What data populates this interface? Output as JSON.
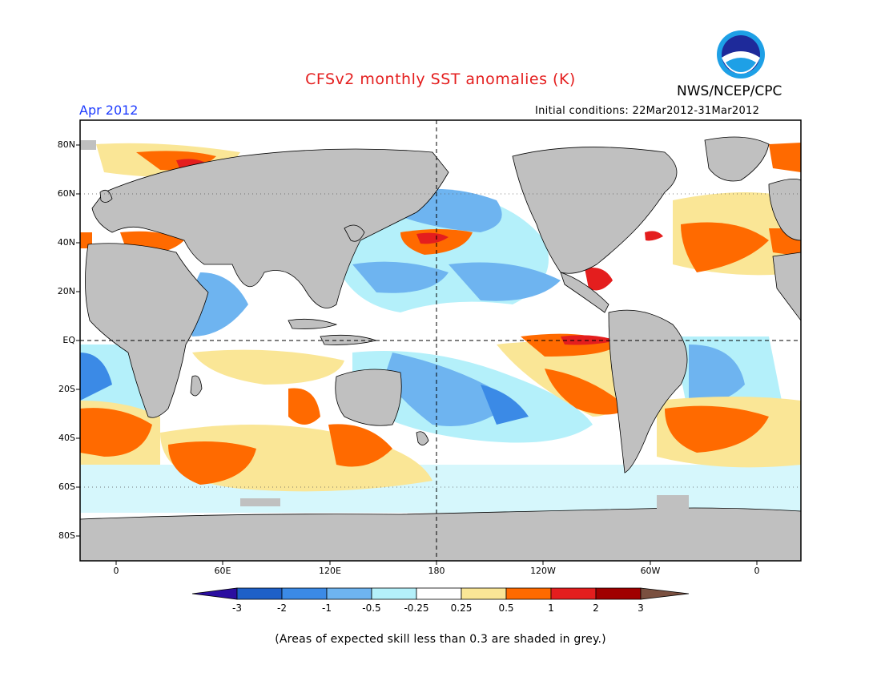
{
  "header": {
    "title": "CFSv2 monthly SST anomalies (K)",
    "org": "NWS/NCEP/CPC",
    "month": "Apr 2012",
    "initial_conditions": "Initial conditions: 22Mar2012-31Mar2012"
  },
  "logo": {
    "text": "NOAA"
  },
  "map": {
    "lat_ticks": [
      "80N",
      "60N",
      "40N",
      "20N",
      "EQ",
      "20S",
      "40S",
      "60S",
      "80S"
    ],
    "lon_ticks": [
      "0",
      "60E",
      "120E",
      "180",
      "120W",
      "60W",
      "0"
    ],
    "projection": "cylindrical equidistant",
    "lon_range": "20W to 340E",
    "lat_range": "90S to 90N",
    "land_color": "#c0c0c0",
    "grey_note_color": "#c0c0c0"
  },
  "colorbar": {
    "levels": [
      "-3",
      "-2",
      "-1",
      "-0.5",
      "-0.25",
      "0.25",
      "0.5",
      "1",
      "2",
      "3"
    ],
    "colors": [
      "#2b0ea0",
      "#1e60c8",
      "#3b8ae6",
      "#6eb4f0",
      "#b4f0fa",
      "#ffffff",
      "#fae696",
      "#ff6a00",
      "#e41e1e",
      "#a00000",
      "#7a5040"
    ]
  },
  "footnote": "(Areas of expected skill less than 0.3 are shaded in grey.)"
}
